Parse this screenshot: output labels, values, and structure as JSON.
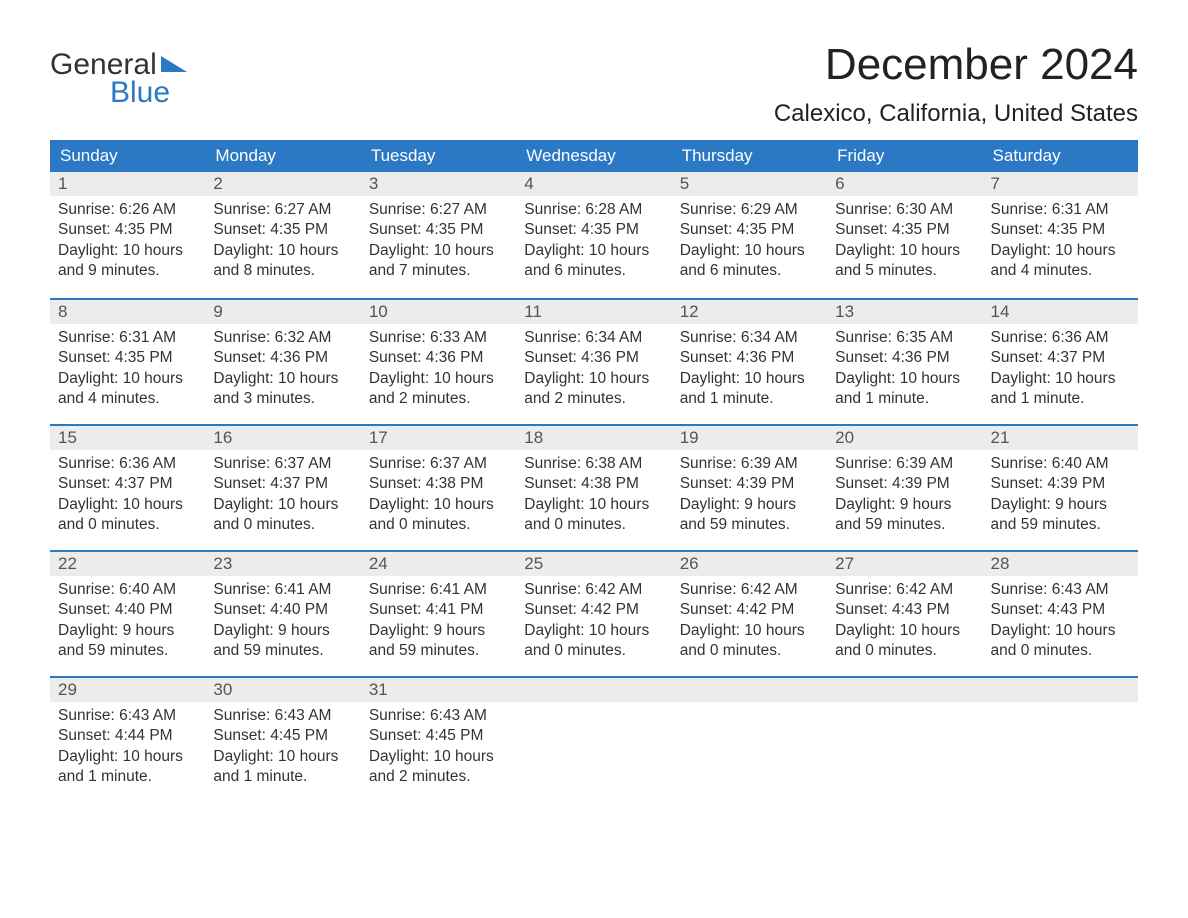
{
  "logo": {
    "line1": "General",
    "line2": "Blue"
  },
  "title": "December 2024",
  "location": "Calexico, California, United States",
  "colors": {
    "header_bg": "#2b78c5",
    "header_text": "#ffffff",
    "daynum_bg": "#ececec",
    "row_border": "#2b78c5",
    "body_text": "#333333",
    "page_bg": "#ffffff"
  },
  "weekdays": [
    "Sunday",
    "Monday",
    "Tuesday",
    "Wednesday",
    "Thursday",
    "Friday",
    "Saturday"
  ],
  "days": [
    {
      "n": "1",
      "sunrise": "Sunrise: 6:26 AM",
      "sunset": "Sunset: 4:35 PM",
      "d1": "Daylight: 10 hours",
      "d2": "and 9 minutes."
    },
    {
      "n": "2",
      "sunrise": "Sunrise: 6:27 AM",
      "sunset": "Sunset: 4:35 PM",
      "d1": "Daylight: 10 hours",
      "d2": "and 8 minutes."
    },
    {
      "n": "3",
      "sunrise": "Sunrise: 6:27 AM",
      "sunset": "Sunset: 4:35 PM",
      "d1": "Daylight: 10 hours",
      "d2": "and 7 minutes."
    },
    {
      "n": "4",
      "sunrise": "Sunrise: 6:28 AM",
      "sunset": "Sunset: 4:35 PM",
      "d1": "Daylight: 10 hours",
      "d2": "and 6 minutes."
    },
    {
      "n": "5",
      "sunrise": "Sunrise: 6:29 AM",
      "sunset": "Sunset: 4:35 PM",
      "d1": "Daylight: 10 hours",
      "d2": "and 6 minutes."
    },
    {
      "n": "6",
      "sunrise": "Sunrise: 6:30 AM",
      "sunset": "Sunset: 4:35 PM",
      "d1": "Daylight: 10 hours",
      "d2": "and 5 minutes."
    },
    {
      "n": "7",
      "sunrise": "Sunrise: 6:31 AM",
      "sunset": "Sunset: 4:35 PM",
      "d1": "Daylight: 10 hours",
      "d2": "and 4 minutes."
    },
    {
      "n": "8",
      "sunrise": "Sunrise: 6:31 AM",
      "sunset": "Sunset: 4:35 PM",
      "d1": "Daylight: 10 hours",
      "d2": "and 4 minutes."
    },
    {
      "n": "9",
      "sunrise": "Sunrise: 6:32 AM",
      "sunset": "Sunset: 4:36 PM",
      "d1": "Daylight: 10 hours",
      "d2": "and 3 minutes."
    },
    {
      "n": "10",
      "sunrise": "Sunrise: 6:33 AM",
      "sunset": "Sunset: 4:36 PM",
      "d1": "Daylight: 10 hours",
      "d2": "and 2 minutes."
    },
    {
      "n": "11",
      "sunrise": "Sunrise: 6:34 AM",
      "sunset": "Sunset: 4:36 PM",
      "d1": "Daylight: 10 hours",
      "d2": "and 2 minutes."
    },
    {
      "n": "12",
      "sunrise": "Sunrise: 6:34 AM",
      "sunset": "Sunset: 4:36 PM",
      "d1": "Daylight: 10 hours",
      "d2": "and 1 minute."
    },
    {
      "n": "13",
      "sunrise": "Sunrise: 6:35 AM",
      "sunset": "Sunset: 4:36 PM",
      "d1": "Daylight: 10 hours",
      "d2": "and 1 minute."
    },
    {
      "n": "14",
      "sunrise": "Sunrise: 6:36 AM",
      "sunset": "Sunset: 4:37 PM",
      "d1": "Daylight: 10 hours",
      "d2": "and 1 minute."
    },
    {
      "n": "15",
      "sunrise": "Sunrise: 6:36 AM",
      "sunset": "Sunset: 4:37 PM",
      "d1": "Daylight: 10 hours",
      "d2": "and 0 minutes."
    },
    {
      "n": "16",
      "sunrise": "Sunrise: 6:37 AM",
      "sunset": "Sunset: 4:37 PM",
      "d1": "Daylight: 10 hours",
      "d2": "and 0 minutes."
    },
    {
      "n": "17",
      "sunrise": "Sunrise: 6:37 AM",
      "sunset": "Sunset: 4:38 PM",
      "d1": "Daylight: 10 hours",
      "d2": "and 0 minutes."
    },
    {
      "n": "18",
      "sunrise": "Sunrise: 6:38 AM",
      "sunset": "Sunset: 4:38 PM",
      "d1": "Daylight: 10 hours",
      "d2": "and 0 minutes."
    },
    {
      "n": "19",
      "sunrise": "Sunrise: 6:39 AM",
      "sunset": "Sunset: 4:39 PM",
      "d1": "Daylight: 9 hours",
      "d2": "and 59 minutes."
    },
    {
      "n": "20",
      "sunrise": "Sunrise: 6:39 AM",
      "sunset": "Sunset: 4:39 PM",
      "d1": "Daylight: 9 hours",
      "d2": "and 59 minutes."
    },
    {
      "n": "21",
      "sunrise": "Sunrise: 6:40 AM",
      "sunset": "Sunset: 4:39 PM",
      "d1": "Daylight: 9 hours",
      "d2": "and 59 minutes."
    },
    {
      "n": "22",
      "sunrise": "Sunrise: 6:40 AM",
      "sunset": "Sunset: 4:40 PM",
      "d1": "Daylight: 9 hours",
      "d2": "and 59 minutes."
    },
    {
      "n": "23",
      "sunrise": "Sunrise: 6:41 AM",
      "sunset": "Sunset: 4:40 PM",
      "d1": "Daylight: 9 hours",
      "d2": "and 59 minutes."
    },
    {
      "n": "24",
      "sunrise": "Sunrise: 6:41 AM",
      "sunset": "Sunset: 4:41 PM",
      "d1": "Daylight: 9 hours",
      "d2": "and 59 minutes."
    },
    {
      "n": "25",
      "sunrise": "Sunrise: 6:42 AM",
      "sunset": "Sunset: 4:42 PM",
      "d1": "Daylight: 10 hours",
      "d2": "and 0 minutes."
    },
    {
      "n": "26",
      "sunrise": "Sunrise: 6:42 AM",
      "sunset": "Sunset: 4:42 PM",
      "d1": "Daylight: 10 hours",
      "d2": "and 0 minutes."
    },
    {
      "n": "27",
      "sunrise": "Sunrise: 6:42 AM",
      "sunset": "Sunset: 4:43 PM",
      "d1": "Daylight: 10 hours",
      "d2": "and 0 minutes."
    },
    {
      "n": "28",
      "sunrise": "Sunrise: 6:43 AM",
      "sunset": "Sunset: 4:43 PM",
      "d1": "Daylight: 10 hours",
      "d2": "and 0 minutes."
    },
    {
      "n": "29",
      "sunrise": "Sunrise: 6:43 AM",
      "sunset": "Sunset: 4:44 PM",
      "d1": "Daylight: 10 hours",
      "d2": "and 1 minute."
    },
    {
      "n": "30",
      "sunrise": "Sunrise: 6:43 AM",
      "sunset": "Sunset: 4:45 PM",
      "d1": "Daylight: 10 hours",
      "d2": "and 1 minute."
    },
    {
      "n": "31",
      "sunrise": "Sunrise: 6:43 AM",
      "sunset": "Sunset: 4:45 PM",
      "d1": "Daylight: 10 hours",
      "d2": "and 2 minutes."
    }
  ]
}
